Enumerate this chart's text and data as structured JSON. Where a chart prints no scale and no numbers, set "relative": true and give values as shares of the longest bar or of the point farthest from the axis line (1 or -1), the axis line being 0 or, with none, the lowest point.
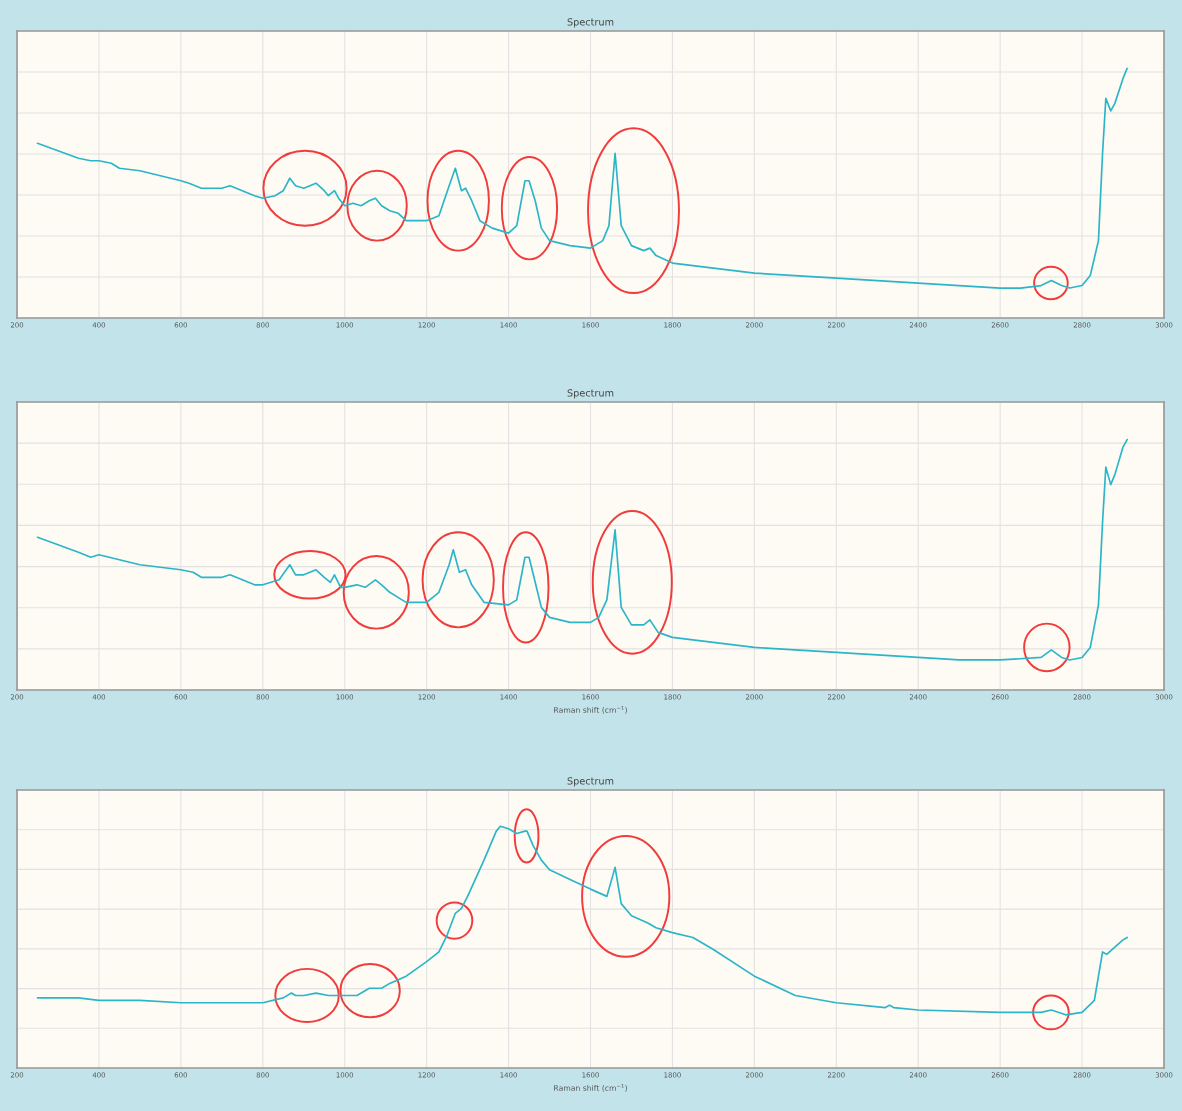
{
  "chart_data": [
    {
      "type": "line",
      "title": "Spectrum",
      "relative": true,
      "xlim": [
        200,
        3000
      ],
      "xticks": [
        200,
        400,
        600,
        800,
        1000,
        1200,
        1400,
        1600,
        1800,
        2000,
        2200,
        2400,
        2600,
        2800,
        3000
      ],
      "grid": true,
      "tick_labels": "x",
      "marker": "none",
      "line_style": "solid",
      "x": [
        250,
        300,
        350,
        380,
        400,
        430,
        450,
        500,
        550,
        600,
        620,
        650,
        700,
        720,
        750,
        780,
        800,
        830,
        850,
        866,
        880,
        900,
        930,
        950,
        960,
        975,
        985,
        1000,
        1020,
        1040,
        1060,
        1075,
        1090,
        1110,
        1130,
        1150,
        1200,
        1230,
        1255,
        1270,
        1285,
        1295,
        1310,
        1330,
        1360,
        1400,
        1420,
        1440,
        1450,
        1465,
        1480,
        1500,
        1550,
        1600,
        1630,
        1645,
        1660,
        1675,
        1700,
        1730,
        1745,
        1760,
        1800,
        1900,
        2000,
        2200,
        2400,
        2500,
        2600,
        2650,
        2700,
        2725,
        2750,
        2770,
        2800,
        2820,
        2840,
        2850,
        2858,
        2870,
        2880,
        2900,
        2910
      ],
      "series": [
        {
          "color": "#2bb5c8",
          "values": [
            0.7,
            0.67,
            0.64,
            0.63,
            0.63,
            0.62,
            0.6,
            0.59,
            0.57,
            0.55,
            0.54,
            0.52,
            0.52,
            0.53,
            0.51,
            0.49,
            0.48,
            0.49,
            0.51,
            0.56,
            0.53,
            0.52,
            0.54,
            0.51,
            0.49,
            0.51,
            0.48,
            0.45,
            0.46,
            0.45,
            0.47,
            0.48,
            0.45,
            0.43,
            0.42,
            0.39,
            0.39,
            0.41,
            0.53,
            0.6,
            0.51,
            0.52,
            0.47,
            0.39,
            0.36,
            0.34,
            0.37,
            0.55,
            0.55,
            0.47,
            0.36,
            0.31,
            0.29,
            0.28,
            0.31,
            0.37,
            0.66,
            0.37,
            0.29,
            0.27,
            0.28,
            0.25,
            0.22,
            0.2,
            0.18,
            0.16,
            0.14,
            0.13,
            0.12,
            0.12,
            0.13,
            0.15,
            0.13,
            0.12,
            0.13,
            0.17,
            0.31,
            0.66,
            0.88,
            0.83,
            0.86,
            0.96,
            1.0
          ]
        }
      ]
    },
    {
      "type": "line",
      "title": "Spectrum",
      "xlabel": "Raman shift (cm$^{−1}$)",
      "relative": true,
      "xlim": [
        200,
        3000
      ],
      "xticks": [
        200,
        400,
        600,
        800,
        1000,
        1200,
        1400,
        1600,
        1800,
        2000,
        2200,
        2400,
        2600,
        2800,
        3000
      ],
      "grid": true,
      "tick_labels": "x",
      "marker": "none",
      "line_style": "solid",
      "x": [
        250,
        300,
        350,
        380,
        400,
        450,
        500,
        550,
        600,
        630,
        650,
        700,
        720,
        750,
        780,
        800,
        840,
        866,
        880,
        900,
        930,
        950,
        965,
        975,
        990,
        1000,
        1030,
        1050,
        1075,
        1090,
        1110,
        1130,
        1150,
        1200,
        1230,
        1255,
        1265,
        1280,
        1295,
        1310,
        1340,
        1400,
        1420,
        1440,
        1450,
        1465,
        1480,
        1500,
        1550,
        1600,
        1620,
        1640,
        1660,
        1675,
        1700,
        1730,
        1745,
        1765,
        1800,
        1900,
        2000,
        2200,
        2400,
        2500,
        2600,
        2700,
        2725,
        2750,
        2770,
        2800,
        2820,
        2840,
        2850,
        2858,
        2870,
        2880,
        2900,
        2910
      ],
      "series": [
        {
          "color": "#2bb5c8",
          "values": [
            0.61,
            0.58,
            0.55,
            0.53,
            0.54,
            0.52,
            0.5,
            0.49,
            0.48,
            0.47,
            0.45,
            0.45,
            0.46,
            0.44,
            0.42,
            0.42,
            0.44,
            0.5,
            0.46,
            0.46,
            0.48,
            0.45,
            0.43,
            0.46,
            0.41,
            0.41,
            0.42,
            0.41,
            0.44,
            0.42,
            0.39,
            0.37,
            0.35,
            0.35,
            0.39,
            0.5,
            0.56,
            0.47,
            0.48,
            0.42,
            0.35,
            0.34,
            0.36,
            0.53,
            0.53,
            0.43,
            0.33,
            0.29,
            0.27,
            0.27,
            0.29,
            0.36,
            0.64,
            0.33,
            0.26,
            0.26,
            0.28,
            0.23,
            0.21,
            0.19,
            0.17,
            0.15,
            0.13,
            0.12,
            0.12,
            0.13,
            0.16,
            0.13,
            0.12,
            0.13,
            0.17,
            0.34,
            0.67,
            0.89,
            0.82,
            0.86,
            0.97,
            1.0
          ]
        }
      ]
    },
    {
      "type": "line",
      "title": "Spectrum",
      "xlabel": "Raman shift (cm$^{−1}$)",
      "relative": true,
      "xlim": [
        200,
        3000
      ],
      "xticks": [
        200,
        400,
        600,
        800,
        1000,
        1200,
        1400,
        1600,
        1800,
        2000,
        2200,
        2400,
        2600,
        2800,
        3000
      ],
      "grid": true,
      "tick_labels": "x",
      "marker": "none",
      "line_style": "solid",
      "x": [
        250,
        350,
        400,
        500,
        600,
        650,
        700,
        750,
        800,
        850,
        870,
        880,
        900,
        930,
        960,
        980,
        1000,
        1030,
        1060,
        1090,
        1110,
        1150,
        1200,
        1230,
        1250,
        1270,
        1285,
        1300,
        1340,
        1370,
        1380,
        1400,
        1420,
        1440,
        1445,
        1460,
        1480,
        1500,
        1550,
        1600,
        1640,
        1660,
        1675,
        1700,
        1740,
        1760,
        1800,
        1850,
        1900,
        2000,
        2100,
        2200,
        2320,
        2330,
        2340,
        2400,
        2600,
        2700,
        2725,
        2760,
        2800,
        2830,
        2850,
        2860,
        2880,
        2900,
        2910
      ],
      "series": [
        {
          "color": "#2bb5c8",
          "values": [
            0.29,
            0.29,
            0.28,
            0.28,
            0.27,
            0.27,
            0.27,
            0.27,
            0.27,
            0.29,
            0.31,
            0.3,
            0.3,
            0.31,
            0.3,
            0.3,
            0.3,
            0.3,
            0.33,
            0.33,
            0.35,
            0.38,
            0.44,
            0.48,
            0.55,
            0.64,
            0.66,
            0.71,
            0.86,
            0.98,
            1.0,
            0.99,
            0.97,
            0.98,
            0.98,
            0.92,
            0.86,
            0.82,
            0.78,
            0.74,
            0.71,
            0.83,
            0.68,
            0.63,
            0.6,
            0.58,
            0.56,
            0.54,
            0.49,
            0.38,
            0.3,
            0.27,
            0.25,
            0.26,
            0.25,
            0.24,
            0.23,
            0.23,
            0.24,
            0.22,
            0.23,
            0.28,
            0.48,
            0.47,
            0.5,
            0.53,
            0.54
          ]
        }
      ]
    }
  ]
}
